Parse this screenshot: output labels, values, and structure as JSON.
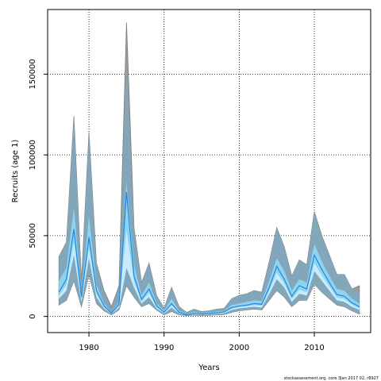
{
  "chart_data": {
    "type": "area",
    "title": "",
    "xlabel": "Years",
    "ylabel": "Recruits (age 1)",
    "xlim": [
      1974.5,
      2017.5
    ],
    "ylim": [
      -10000,
      190000
    ],
    "x_ticks": [
      1980,
      1990,
      2000,
      2010
    ],
    "y_ticks": [
      0,
      50000,
      100000,
      150000
    ],
    "x_tick_labels": [
      "1980",
      "1990",
      "2000",
      "2010"
    ],
    "y_tick_labels": [
      "0",
      "50000",
      "100000",
      "150000"
    ],
    "grid": true,
    "x": [
      1976,
      1977,
      1978,
      1979,
      1980,
      1981,
      1982,
      1983,
      1984,
      1985,
      1986,
      1987,
      1988,
      1989,
      1990,
      1991,
      1992,
      1993,
      1994,
      1995,
      1996,
      1997,
      1998,
      1999,
      2000,
      2001,
      2002,
      2003,
      2004,
      2005,
      2006,
      2007,
      2008,
      2009,
      2010,
      2011,
      2012,
      2013,
      2014,
      2015,
      2016
    ],
    "series": [
      {
        "role": "outer band",
        "upper": [
          37000,
          46000,
          124000,
          22000,
          114000,
          33000,
          16000,
          6000,
          19000,
          182000,
          55000,
          21000,
          33000,
          13000,
          5000,
          18000,
          6000,
          2500,
          4500,
          3000,
          3500,
          4500,
          5000,
          11000,
          13000,
          14000,
          16000,
          15000,
          34000,
          55000,
          43000,
          25000,
          35000,
          32000,
          65000,
          50000,
          38000,
          26000,
          26000,
          17000,
          19000
        ],
        "lower": [
          7000,
          10000,
          22000,
          6000,
          26000,
          8000,
          3500,
          1000,
          4000,
          19000,
          12000,
          6000,
          8000,
          4000,
          1000,
          3000,
          1000,
          500,
          800,
          600,
          700,
          1000,
          1200,
          2500,
          3500,
          4000,
          4500,
          4000,
          10000,
          16000,
          12000,
          6000,
          10000,
          10000,
          20000,
          15000,
          11000,
          7000,
          6000,
          3500,
          1500
        ]
      },
      {
        "role": "inner band",
        "upper": [
          22000,
          30000,
          67000,
          14000,
          62000,
          20000,
          8000,
          2500,
          9000,
          83000,
          32000,
          13000,
          21000,
          8000,
          3500,
          11000,
          3500,
          1500,
          3000,
          2000,
          2500,
          3000,
          3500,
          7000,
          8000,
          9000,
          10000,
          9500,
          22000,
          36000,
          28000,
          16000,
          23000,
          21000,
          45000,
          34000,
          25000,
          17000,
          16000,
          11000,
          8000
        ],
        "lower": [
          11000,
          16000,
          38000,
          9000,
          36000,
          12000,
          5000,
          1500,
          5500,
          30000,
          18000,
          8000,
          12000,
          5000,
          1800,
          5500,
          1800,
          800,
          1500,
          1000,
          1300,
          1700,
          2000,
          4000,
          5000,
          5500,
          6000,
          5500,
          14000,
          23000,
          18000,
          9000,
          14000,
          13000,
          28000,
          22000,
          16000,
          10000,
          9000,
          6000,
          4000
        ]
      },
      {
        "role": "estimate",
        "values": [
          15000,
          23000,
          54000,
          12000,
          49000,
          16000,
          6500,
          2000,
          7500,
          77000,
          25000,
          10500,
          17000,
          6500,
          2500,
          8000,
          2500,
          1000,
          2000,
          1500,
          1800,
          2300,
          2800,
          5500,
          6500,
          7000,
          8000,
          7500,
          18000,
          31000,
          23000,
          12500,
          19000,
          17000,
          38000,
          29000,
          21000,
          13500,
          12500,
          8500,
          6000
        ]
      }
    ],
    "colors": {
      "outer_band": "#9c9c9c",
      "overlap": "#7fa9bf",
      "inner_band": "#8fd3ef",
      "inner_core": "#d6f0fb",
      "line": "#1e88e5",
      "grid": "#000000",
      "outer_edge": "#7d7d7d"
    }
  },
  "footer": {
    "text": "stockassessment.org, core 3Jan 2017 02, r8927"
  }
}
